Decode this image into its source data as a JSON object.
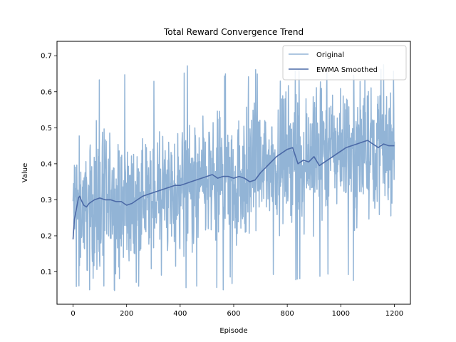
{
  "chart_data": {
    "type": "line",
    "title": "Total Reward Convergence Trend",
    "xlabel": "Episode",
    "ylabel": "Value",
    "xlim": [
      -60,
      1260
    ],
    "ylim": [
      0.01,
      0.74
    ],
    "xticks": [
      0,
      200,
      400,
      600,
      800,
      1000,
      1200
    ],
    "yticks": [
      0.1,
      0.2,
      0.3,
      0.4,
      0.5,
      0.6,
      0.7
    ],
    "grid": false,
    "legend_position": "top-right",
    "series": [
      {
        "name": "Original",
        "color": "#92b4d6",
        "style": "noisy",
        "x_range": [
          0,
          1200
        ],
        "n_points": 1201,
        "min": 0.045,
        "max": 0.675,
        "trend_x": [
          0,
          200,
          400,
          600,
          700,
          800,
          900,
          1000,
          1200
        ],
        "trend_y": [
          0.28,
          0.29,
          0.33,
          0.36,
          0.38,
          0.43,
          0.42,
          0.45,
          0.45
        ],
        "noise_amplitude": 0.13
      },
      {
        "name": "EWMA Smoothed",
        "color": "#4c6aa7",
        "x": [
          0,
          5,
          10,
          15,
          20,
          25,
          30,
          40,
          50,
          60,
          80,
          100,
          120,
          140,
          160,
          180,
          200,
          220,
          240,
          260,
          280,
          300,
          320,
          340,
          360,
          380,
          400,
          420,
          440,
          460,
          480,
          500,
          520,
          540,
          560,
          580,
          600,
          620,
          640,
          660,
          680,
          700,
          720,
          740,
          760,
          780,
          800,
          820,
          840,
          860,
          880,
          900,
          920,
          940,
          960,
          980,
          1000,
          1020,
          1040,
          1060,
          1080,
          1100,
          1120,
          1140,
          1160,
          1180,
          1200
        ],
        "values": [
          0.19,
          0.245,
          0.265,
          0.285,
          0.305,
          0.31,
          0.3,
          0.285,
          0.28,
          0.29,
          0.3,
          0.305,
          0.3,
          0.3,
          0.295,
          0.295,
          0.285,
          0.29,
          0.3,
          0.31,
          0.315,
          0.32,
          0.325,
          0.33,
          0.335,
          0.34,
          0.34,
          0.345,
          0.35,
          0.355,
          0.36,
          0.365,
          0.37,
          0.36,
          0.365,
          0.365,
          0.36,
          0.365,
          0.36,
          0.35,
          0.355,
          0.375,
          0.39,
          0.405,
          0.42,
          0.43,
          0.44,
          0.445,
          0.4,
          0.41,
          0.405,
          0.42,
          0.395,
          0.405,
          0.415,
          0.425,
          0.435,
          0.445,
          0.45,
          0.455,
          0.46,
          0.465,
          0.455,
          0.445,
          0.455,
          0.45,
          0.45
        ]
      }
    ]
  }
}
